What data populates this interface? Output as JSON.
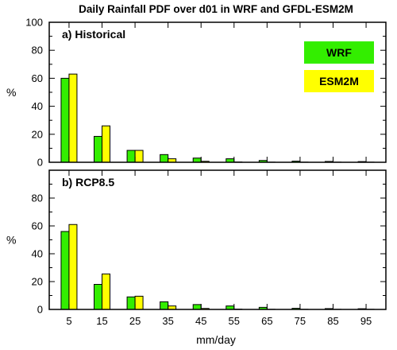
{
  "figure": {
    "title": "Daily Rainfall PDF over d01 in WRF and GFDL-ESM2M",
    "xlabel": "mm/day",
    "ylabel": "%"
  },
  "colors": {
    "WRF": "#33ee00",
    "ESM2M": "#ffff00",
    "axis": "#000000"
  },
  "legend": {
    "items": [
      "WRF",
      "ESM2M"
    ]
  },
  "chart_data": [
    {
      "type": "bar",
      "panel_label": "a) Historical",
      "categories": [
        "5",
        "15",
        "25",
        "35",
        "45",
        "55",
        "65",
        "75",
        "85",
        "95"
      ],
      "x_tick_labels": [
        "5",
        "15",
        "25",
        "35",
        "45",
        "55",
        "65",
        "75",
        "85",
        "95"
      ],
      "xlabel": "mm/day",
      "ylabel": "%",
      "ylim": [
        0,
        100
      ],
      "y_ticks": [
        0,
        20,
        40,
        60,
        80,
        100
      ],
      "series": [
        {
          "name": "WRF",
          "values": [
            60,
            18.5,
            8.5,
            5.5,
            3,
            2.5,
            1.3,
            0.8,
            0.6,
            0.5
          ]
        },
        {
          "name": "ESM2M",
          "values": [
            63,
            26,
            8.5,
            2.5,
            0.7,
            0.2,
            0.1,
            0.1,
            0.1,
            0.1
          ]
        }
      ],
      "legend": true,
      "legend_position": "top-right"
    },
    {
      "type": "bar",
      "panel_label": "b) RCP8.5",
      "categories": [
        "5",
        "15",
        "25",
        "35",
        "45",
        "55",
        "65",
        "75",
        "85",
        "95"
      ],
      "x_tick_labels": [
        "5",
        "15",
        "25",
        "35",
        "45",
        "55",
        "65",
        "75",
        "85",
        "95"
      ],
      "xlabel": "mm/day",
      "ylabel": "%",
      "ylim": [
        0,
        100
      ],
      "y_ticks": [
        0,
        20,
        40,
        60,
        80
      ],
      "series": [
        {
          "name": "WRF",
          "values": [
            56,
            18,
            9,
            5.5,
            3.5,
            2.5,
            1.5,
            0.8,
            0.6,
            0.5
          ]
        },
        {
          "name": "ESM2M",
          "values": [
            61,
            25.5,
            9.5,
            2.5,
            0.7,
            0.2,
            0.1,
            0.1,
            0.1,
            0.1
          ]
        }
      ],
      "legend": false
    }
  ]
}
